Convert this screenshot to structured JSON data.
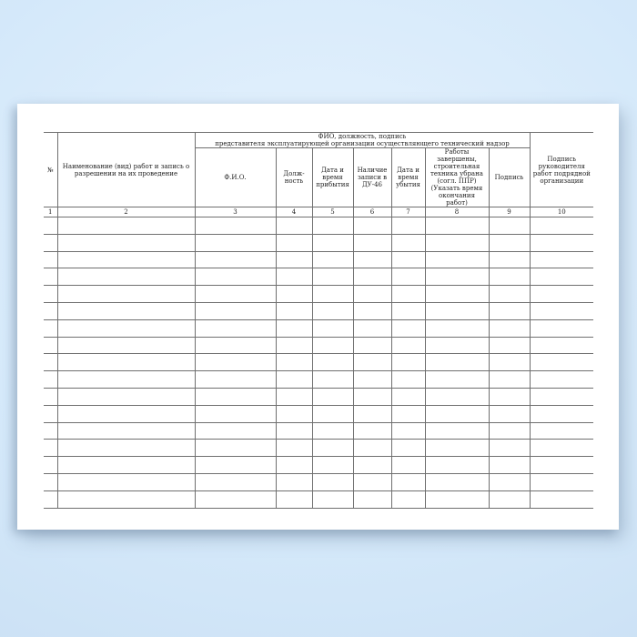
{
  "colors": {
    "background_blue": "#d5e9fa",
    "paper": "#ffffff",
    "table_line": "#6f6f6f",
    "text": "#1f1f1f"
  },
  "table": {
    "group_header": {
      "line1": "ФИО, должность, подпись",
      "line2": "представителя эксплуатирующей организации осуществляющего технический надзор"
    },
    "columns": [
      {
        "num": "1",
        "label": "№"
      },
      {
        "num": "2",
        "label": "Наименование (вид) работ и запись о разрешении на их проведение"
      },
      {
        "num": "3",
        "label": "Ф.И.О."
      },
      {
        "num": "4",
        "label": "Долж-ность"
      },
      {
        "num": "5",
        "label": "Дата и время прибытия"
      },
      {
        "num": "6",
        "label": "Наличие записи в ДУ-46"
      },
      {
        "num": "7",
        "label": "Дата и время убытия"
      },
      {
        "num": "8",
        "label": "Работы завершены, строительная техника убрана (согл. ППР) (Указать время окончания работ)"
      },
      {
        "num": "9",
        "label": "Подпись"
      },
      {
        "num": "10",
        "label": "Подпись руководителя работ подрядной организации"
      }
    ],
    "empty_row_count": 17
  }
}
